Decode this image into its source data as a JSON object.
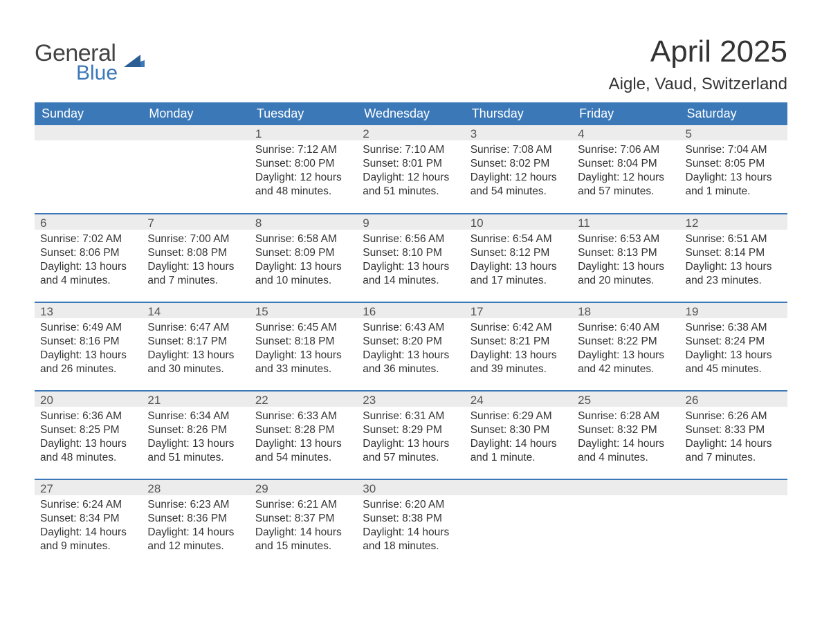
{
  "logo": {
    "line1": "General",
    "line2": "Blue"
  },
  "header": {
    "title": "April 2025",
    "subtitle": "Aigle, Vaud, Switzerland"
  },
  "colors": {
    "header_bg": "#3b78b8",
    "header_text": "#ffffff",
    "daynum_bg": "#ececec",
    "daynum_text": "#555555",
    "body_text": "#333333",
    "rule": "#3b78b8",
    "page_bg": "#ffffff",
    "logo_blue": "#3b78b8"
  },
  "weekdays": [
    "Sunday",
    "Monday",
    "Tuesday",
    "Wednesday",
    "Thursday",
    "Friday",
    "Saturday"
  ],
  "first_weekday_index": 2,
  "days": [
    {
      "n": 1,
      "sunrise": "7:12 AM",
      "sunset": "8:00 PM",
      "daylight": "12 hours and 48 minutes."
    },
    {
      "n": 2,
      "sunrise": "7:10 AM",
      "sunset": "8:01 PM",
      "daylight": "12 hours and 51 minutes."
    },
    {
      "n": 3,
      "sunrise": "7:08 AM",
      "sunset": "8:02 PM",
      "daylight": "12 hours and 54 minutes."
    },
    {
      "n": 4,
      "sunrise": "7:06 AM",
      "sunset": "8:04 PM",
      "daylight": "12 hours and 57 minutes."
    },
    {
      "n": 5,
      "sunrise": "7:04 AM",
      "sunset": "8:05 PM",
      "daylight": "13 hours and 1 minute."
    },
    {
      "n": 6,
      "sunrise": "7:02 AM",
      "sunset": "8:06 PM",
      "daylight": "13 hours and 4 minutes."
    },
    {
      "n": 7,
      "sunrise": "7:00 AM",
      "sunset": "8:08 PM",
      "daylight": "13 hours and 7 minutes."
    },
    {
      "n": 8,
      "sunrise": "6:58 AM",
      "sunset": "8:09 PM",
      "daylight": "13 hours and 10 minutes."
    },
    {
      "n": 9,
      "sunrise": "6:56 AM",
      "sunset": "8:10 PM",
      "daylight": "13 hours and 14 minutes."
    },
    {
      "n": 10,
      "sunrise": "6:54 AM",
      "sunset": "8:12 PM",
      "daylight": "13 hours and 17 minutes."
    },
    {
      "n": 11,
      "sunrise": "6:53 AM",
      "sunset": "8:13 PM",
      "daylight": "13 hours and 20 minutes."
    },
    {
      "n": 12,
      "sunrise": "6:51 AM",
      "sunset": "8:14 PM",
      "daylight": "13 hours and 23 minutes."
    },
    {
      "n": 13,
      "sunrise": "6:49 AM",
      "sunset": "8:16 PM",
      "daylight": "13 hours and 26 minutes."
    },
    {
      "n": 14,
      "sunrise": "6:47 AM",
      "sunset": "8:17 PM",
      "daylight": "13 hours and 30 minutes."
    },
    {
      "n": 15,
      "sunrise": "6:45 AM",
      "sunset": "8:18 PM",
      "daylight": "13 hours and 33 minutes."
    },
    {
      "n": 16,
      "sunrise": "6:43 AM",
      "sunset": "8:20 PM",
      "daylight": "13 hours and 36 minutes."
    },
    {
      "n": 17,
      "sunrise": "6:42 AM",
      "sunset": "8:21 PM",
      "daylight": "13 hours and 39 minutes."
    },
    {
      "n": 18,
      "sunrise": "6:40 AM",
      "sunset": "8:22 PM",
      "daylight": "13 hours and 42 minutes."
    },
    {
      "n": 19,
      "sunrise": "6:38 AM",
      "sunset": "8:24 PM",
      "daylight": "13 hours and 45 minutes."
    },
    {
      "n": 20,
      "sunrise": "6:36 AM",
      "sunset": "8:25 PM",
      "daylight": "13 hours and 48 minutes."
    },
    {
      "n": 21,
      "sunrise": "6:34 AM",
      "sunset": "8:26 PM",
      "daylight": "13 hours and 51 minutes."
    },
    {
      "n": 22,
      "sunrise": "6:33 AM",
      "sunset": "8:28 PM",
      "daylight": "13 hours and 54 minutes."
    },
    {
      "n": 23,
      "sunrise": "6:31 AM",
      "sunset": "8:29 PM",
      "daylight": "13 hours and 57 minutes."
    },
    {
      "n": 24,
      "sunrise": "6:29 AM",
      "sunset": "8:30 PM",
      "daylight": "14 hours and 1 minute."
    },
    {
      "n": 25,
      "sunrise": "6:28 AM",
      "sunset": "8:32 PM",
      "daylight": "14 hours and 4 minutes."
    },
    {
      "n": 26,
      "sunrise": "6:26 AM",
      "sunset": "8:33 PM",
      "daylight": "14 hours and 7 minutes."
    },
    {
      "n": 27,
      "sunrise": "6:24 AM",
      "sunset": "8:34 PM",
      "daylight": "14 hours and 9 minutes."
    },
    {
      "n": 28,
      "sunrise": "6:23 AM",
      "sunset": "8:36 PM",
      "daylight": "14 hours and 12 minutes."
    },
    {
      "n": 29,
      "sunrise": "6:21 AM",
      "sunset": "8:37 PM",
      "daylight": "14 hours and 15 minutes."
    },
    {
      "n": 30,
      "sunrise": "6:20 AM",
      "sunset": "8:38 PM",
      "daylight": "14 hours and 18 minutes."
    }
  ],
  "labels": {
    "sunrise": "Sunrise:",
    "sunset": "Sunset:",
    "daylight": "Daylight:"
  }
}
